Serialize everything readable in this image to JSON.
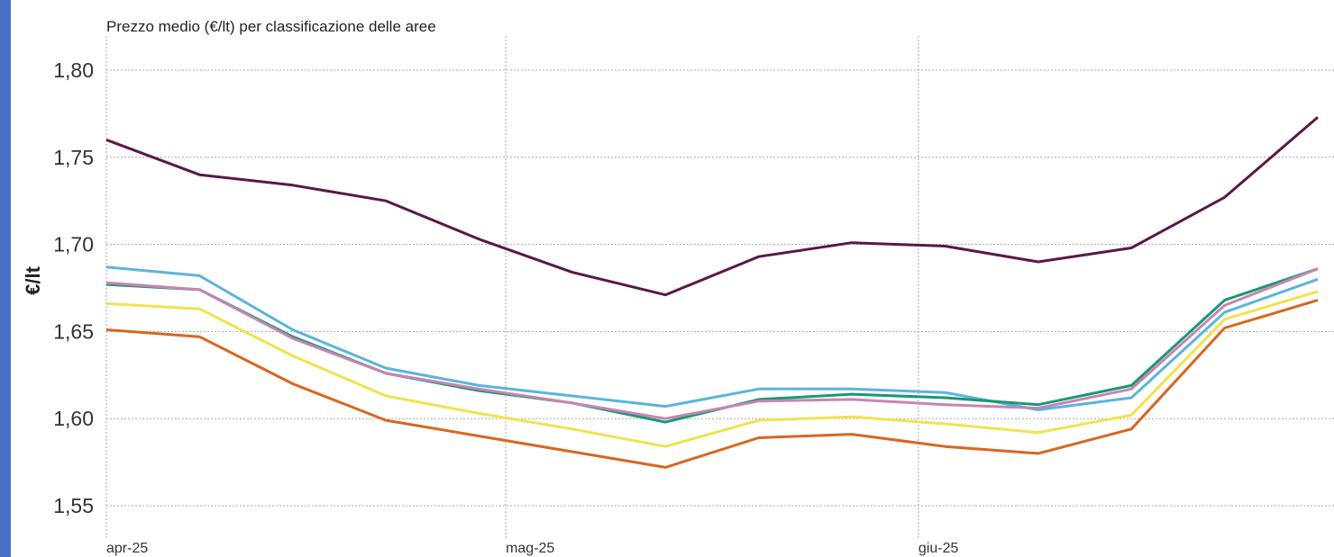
{
  "chart_data": {
    "type": "line",
    "title": "Prezzo medio (€/lt) per classificazione delle aree",
    "ylabel": "€/lt",
    "xlabel": "",
    "ylim": [
      1.55,
      1.8
    ],
    "y_ticks": [
      "1,55",
      "1,60",
      "1,65",
      "1,70",
      "1,75",
      "1,80"
    ],
    "x_tick_labels": [
      "apr-25",
      "mag-25",
      "giu-25"
    ],
    "x": [
      "2025-04-01",
      "2025-04-08",
      "2025-04-15",
      "2025-04-22",
      "2025-04-29",
      "2025-05-06",
      "2025-05-13",
      "2025-05-20",
      "2025-05-27",
      "2025-06-03",
      "2025-06-10",
      "2025-06-17",
      "2025-06-24",
      "2025-07-01"
    ],
    "grid": true,
    "series": [
      {
        "color": "#5a1848",
        "values": [
          1.76,
          1.74,
          1.734,
          1.725,
          1.703,
          1.684,
          1.671,
          1.693,
          1.701,
          1.699,
          1.69,
          1.698,
          1.727,
          1.773
        ]
      },
      {
        "color": "#5bb4dd",
        "values": [
          1.687,
          1.682,
          1.651,
          1.629,
          1.619,
          1.613,
          1.607,
          1.617,
          1.617,
          1.615,
          1.605,
          1.612,
          1.661,
          1.68
        ]
      },
      {
        "color": "#1a9873",
        "values": [
          1.677,
          1.674,
          1.647,
          1.626,
          1.616,
          1.609,
          1.598,
          1.611,
          1.614,
          1.612,
          1.608,
          1.619,
          1.668,
          1.686
        ]
      },
      {
        "color": "#c884b4",
        "values": [
          1.678,
          1.674,
          1.646,
          1.626,
          1.617,
          1.609,
          1.6,
          1.61,
          1.611,
          1.608,
          1.606,
          1.617,
          1.665,
          1.686
        ]
      },
      {
        "color": "#f2e24e",
        "values": [
          1.666,
          1.663,
          1.636,
          1.613,
          1.603,
          1.594,
          1.584,
          1.599,
          1.601,
          1.597,
          1.592,
          1.602,
          1.657,
          1.673
        ]
      },
      {
        "color": "#d9661f",
        "values": [
          1.651,
          1.647,
          1.62,
          1.599,
          1.59,
          1.581,
          1.572,
          1.589,
          1.591,
          1.584,
          1.58,
          1.594,
          1.652,
          1.668
        ]
      }
    ]
  }
}
